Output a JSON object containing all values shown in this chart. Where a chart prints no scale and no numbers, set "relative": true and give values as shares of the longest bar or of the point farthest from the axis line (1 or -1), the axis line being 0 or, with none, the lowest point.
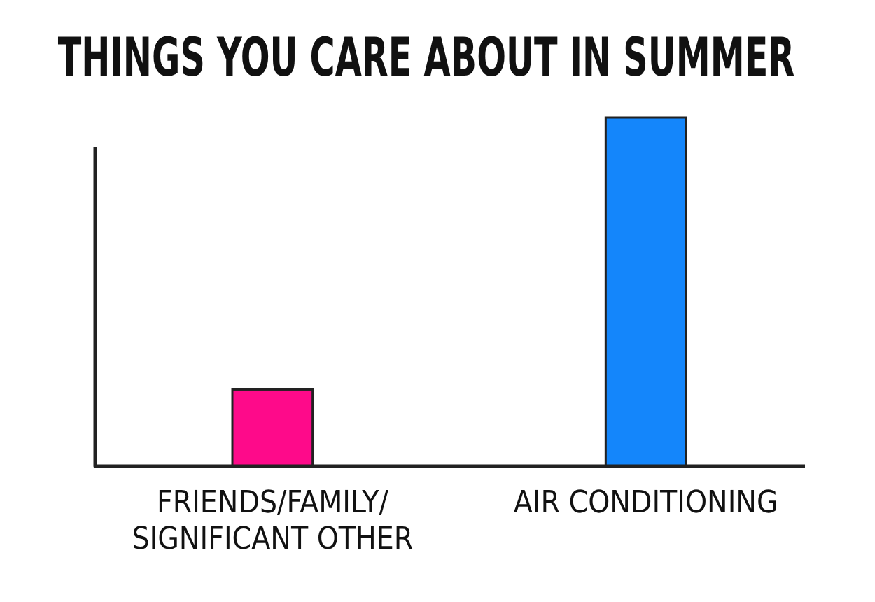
{
  "chart_data": {
    "type": "bar",
    "title": "THINGS YOU CARE ABOUT IN SUMMER",
    "categories": [
      "FRIENDS/FAMILY/ SIGNIFICANT OTHER",
      "AIR CONDITIONING"
    ],
    "values": [
      0.22,
      1
    ],
    "colors": [
      "#fe0a8a",
      "#1486fb"
    ],
    "relative": true
  }
}
